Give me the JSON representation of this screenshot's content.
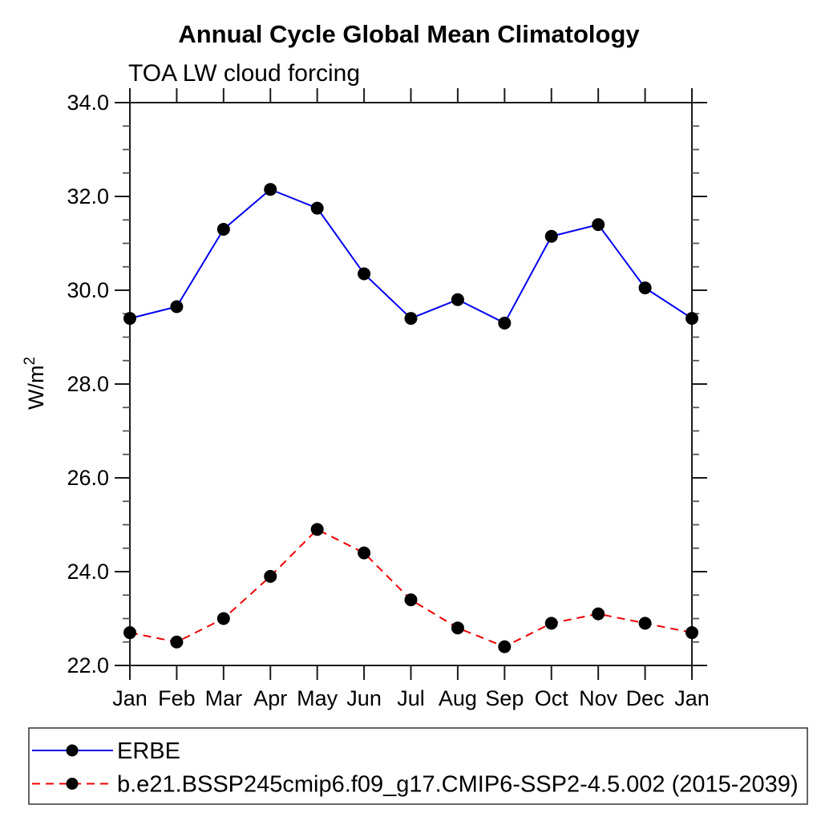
{
  "title": "Annual Cycle Global Mean Climatology",
  "subtitle": "TOA LW cloud forcing",
  "y_axis": {
    "label": "W/m",
    "label_superscript": "2",
    "tick_labels": [
      "22.0",
      "24.0",
      "26.0",
      "28.0",
      "30.0",
      "32.0",
      "34.0"
    ],
    "min": 22.0,
    "max": 34.0,
    "major_step": 2.0,
    "minor_step": 0.5
  },
  "x_axis": {
    "tick_labels": [
      "Jan",
      "Feb",
      "Mar",
      "Apr",
      "May",
      "Jun",
      "Jul",
      "Aug",
      "Sep",
      "Oct",
      "Nov",
      "Dec",
      "Jan"
    ]
  },
  "colors": {
    "erbe_line": "#0000ee",
    "model_line": "#ee0000",
    "marker": "#000000",
    "axis": "#1a1a1a",
    "minor_tick": "#555555"
  },
  "chart_data": {
    "type": "line",
    "title": "Annual Cycle Global Mean Climatology",
    "subtitle": "TOA LW cloud forcing",
    "xlabel": "",
    "ylabel": "W/m2",
    "x": [
      "Jan",
      "Feb",
      "Mar",
      "Apr",
      "May",
      "Jun",
      "Jul",
      "Aug",
      "Sep",
      "Oct",
      "Nov",
      "Dec",
      "Jan"
    ],
    "ylim": [
      22.0,
      34.0
    ],
    "y_major_step": 2.0,
    "y_minor_step": 0.5,
    "grid": false,
    "legend_position": "bottom",
    "series": [
      {
        "name": "ERBE",
        "color": "#0000ee",
        "line_style": "solid",
        "marker": "circle",
        "values": [
          29.4,
          29.65,
          31.3,
          32.15,
          31.75,
          30.35,
          29.4,
          29.8,
          29.3,
          31.15,
          31.4,
          30.05,
          29.4
        ]
      },
      {
        "name": "b.e21.BSSP245cmip6.f09_g17.CMIP6-SSP2-4.5.002 (2015-2039)",
        "color": "#ee0000",
        "line_style": "dashed",
        "marker": "circle",
        "values": [
          22.7,
          22.5,
          23.0,
          23.9,
          24.9,
          24.4,
          23.4,
          22.8,
          22.4,
          22.9,
          23.1,
          22.9,
          22.7
        ]
      }
    ]
  }
}
